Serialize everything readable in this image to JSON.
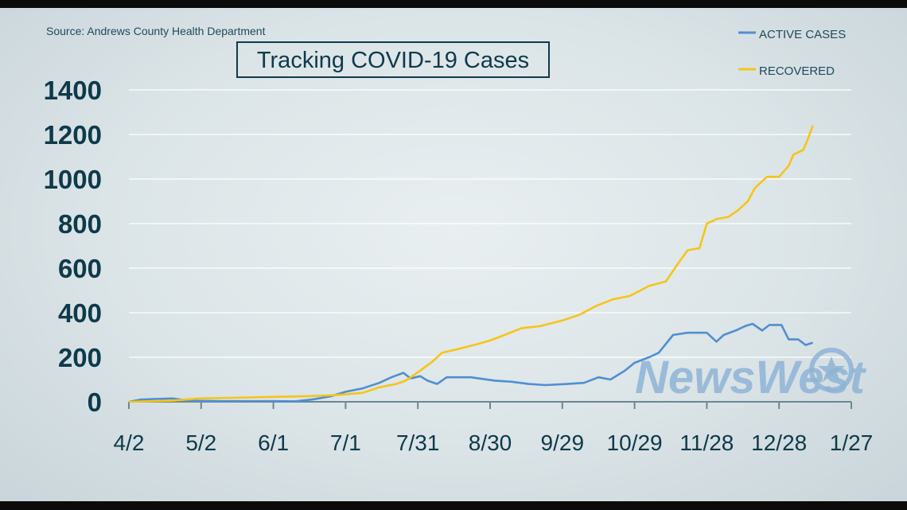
{
  "source": "Source: Andrews County Health Department",
  "watermark": "NewsWest",
  "colors": {
    "active": "#4f8fd0",
    "recovered": "#f5c518",
    "text": "#0e3a4a",
    "grid": "#ffffff"
  },
  "chart_data": {
    "type": "line",
    "title": "Tracking COVID-19 Cases",
    "xlabel": "",
    "ylabel": "",
    "ylim": [
      0,
      1400
    ],
    "yticks": [
      0,
      200,
      400,
      600,
      800,
      1000,
      1200,
      1400
    ],
    "x_ticks": [
      "4/2",
      "5/2",
      "6/1",
      "7/1",
      "7/31",
      "8/30",
      "9/29",
      "10/29",
      "11/28",
      "12/28",
      "1/27"
    ],
    "grid": true,
    "legend": "top-right",
    "series": [
      {
        "name": "ACTIVE CASES",
        "color": "#4f8fd0",
        "points": [
          [
            "4/2",
            0
          ],
          [
            "4/7",
            10
          ],
          [
            "4/12",
            12
          ],
          [
            "4/20",
            15
          ],
          [
            "4/27",
            5
          ],
          [
            "5/10",
            3
          ],
          [
            "6/1",
            3
          ],
          [
            "6/10",
            2
          ],
          [
            "6/17",
            10
          ],
          [
            "6/25",
            25
          ],
          [
            "7/1",
            45
          ],
          [
            "7/8",
            60
          ],
          [
            "7/15",
            85
          ],
          [
            "7/20",
            110
          ],
          [
            "7/25",
            130
          ],
          [
            "7/28",
            105
          ],
          [
            "8/1",
            115
          ],
          [
            "8/4",
            95
          ],
          [
            "8/8",
            80
          ],
          [
            "8/12",
            110
          ],
          [
            "8/22",
            110
          ],
          [
            "9/1",
            95
          ],
          [
            "9/8",
            90
          ],
          [
            "9/15",
            80
          ],
          [
            "9/22",
            75
          ],
          [
            "10/1",
            80
          ],
          [
            "10/8",
            85
          ],
          [
            "10/14",
            110
          ],
          [
            "10/19",
            100
          ],
          [
            "10/25",
            140
          ],
          [
            "10/29",
            175
          ],
          [
            "11/4",
            200
          ],
          [
            "11/8",
            220
          ],
          [
            "11/14",
            300
          ],
          [
            "11/20",
            310
          ],
          [
            "11/28",
            310
          ],
          [
            "12/2",
            270
          ],
          [
            "12/5",
            300
          ],
          [
            "12/10",
            320
          ],
          [
            "12/14",
            340
          ],
          [
            "12/17",
            350
          ],
          [
            "12/21",
            320
          ],
          [
            "12/24",
            345
          ],
          [
            "12/29",
            345
          ],
          [
            "1/1",
            280
          ],
          [
            "1/5",
            280
          ],
          [
            "1/8",
            255
          ],
          [
            "1/11",
            265
          ]
        ]
      },
      {
        "name": "RECOVERED",
        "color": "#f5c518",
        "points": [
          [
            "4/2",
            0
          ],
          [
            "4/20",
            5
          ],
          [
            "5/1",
            15
          ],
          [
            "5/15",
            18
          ],
          [
            "6/1",
            22
          ],
          [
            "6/15",
            25
          ],
          [
            "6/27",
            30
          ],
          [
            "7/8",
            40
          ],
          [
            "7/15",
            65
          ],
          [
            "7/22",
            80
          ],
          [
            "7/26",
            95
          ],
          [
            "8/1",
            140
          ],
          [
            "8/6",
            180
          ],
          [
            "8/10",
            220
          ],
          [
            "8/18",
            240
          ],
          [
            "8/25",
            260
          ],
          [
            "8/30",
            275
          ],
          [
            "9/5",
            300
          ],
          [
            "9/12",
            330
          ],
          [
            "9/20",
            340
          ],
          [
            "9/29",
            365
          ],
          [
            "10/6",
            390
          ],
          [
            "10/13",
            430
          ],
          [
            "10/20",
            460
          ],
          [
            "10/27",
            475
          ],
          [
            "11/4",
            520
          ],
          [
            "11/11",
            540
          ],
          [
            "11/16",
            620
          ],
          [
            "11/20",
            680
          ],
          [
            "11/25",
            690
          ],
          [
            "11/28",
            800
          ],
          [
            "12/2",
            820
          ],
          [
            "12/7",
            830
          ],
          [
            "12/11",
            860
          ],
          [
            "12/15",
            900
          ],
          [
            "12/18",
            960
          ],
          [
            "12/23",
            1010
          ],
          [
            "12/28",
            1010
          ],
          [
            "1/1",
            1060
          ],
          [
            "1/3",
            1110
          ],
          [
            "1/7",
            1130
          ],
          [
            "1/9",
            1180
          ],
          [
            "1/11",
            1240
          ]
        ]
      }
    ]
  }
}
